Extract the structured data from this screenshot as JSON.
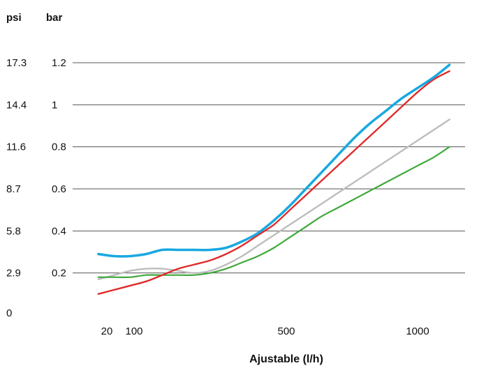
{
  "chart_data": {
    "type": "line",
    "title": "",
    "xlabel": "Ajustable (l/h)",
    "ylabel_left": "psi",
    "ylabel_right": "bar",
    "y_ticks_psi": [
      "17.3",
      "14.4",
      "11.6",
      "8.7",
      "5.8",
      "2.9",
      "0"
    ],
    "y_ticks_bar": [
      "1.2",
      "1",
      "0.8",
      "0.6",
      "0.4",
      "0.2",
      ""
    ],
    "x_ticks": [
      {
        "label": "20",
        "value": 20
      },
      {
        "label": "100",
        "value": 100
      },
      {
        "label": "500",
        "value": 500
      },
      {
        "label": "1000",
        "value": 1000
      }
    ],
    "xlim": [
      -30,
      1180
    ],
    "ylim": [
      0,
      1.2
    ],
    "grid": true,
    "series": [
      {
        "color": "#18a8e0",
        "x": [
          0,
          50,
          100,
          150,
          200,
          250,
          300,
          350,
          400,
          450,
          500,
          550,
          600,
          650,
          700,
          750,
          800,
          850,
          900,
          950,
          1000,
          1050,
          1100
        ],
        "y": [
          0.29,
          0.28,
          0.28,
          0.29,
          0.31,
          0.31,
          0.31,
          0.31,
          0.32,
          0.35,
          0.39,
          0.45,
          0.52,
          0.6,
          0.68,
          0.76,
          0.84,
          0.91,
          0.97,
          1.03,
          1.08,
          1.13,
          1.19
        ]
      },
      {
        "color": "#e02b2b",
        "x": [
          0,
          50,
          100,
          150,
          200,
          250,
          300,
          350,
          400,
          450,
          500,
          550,
          600,
          650,
          700,
          750,
          800,
          850,
          900,
          950,
          1000,
          1050,
          1100
        ],
        "y": [
          0.1,
          0.12,
          0.14,
          0.16,
          0.19,
          0.22,
          0.24,
          0.26,
          0.29,
          0.33,
          0.38,
          0.43,
          0.5,
          0.57,
          0.64,
          0.71,
          0.78,
          0.85,
          0.92,
          0.99,
          1.06,
          1.12,
          1.16
        ]
      },
      {
        "color": "#bdbdbd",
        "x": [
          0,
          50,
          100,
          150,
          200,
          250,
          300,
          350,
          400,
          450,
          500,
          550,
          600,
          650,
          700,
          750,
          800,
          850,
          900,
          950,
          1000,
          1050,
          1100
        ],
        "y": [
          0.17,
          0.19,
          0.21,
          0.22,
          0.22,
          0.21,
          0.2,
          0.21,
          0.24,
          0.28,
          0.33,
          0.38,
          0.43,
          0.48,
          0.53,
          0.58,
          0.63,
          0.68,
          0.73,
          0.78,
          0.83,
          0.88,
          0.93
        ]
      },
      {
        "color": "#3fa83a",
        "x": [
          0,
          50,
          100,
          150,
          200,
          250,
          300,
          350,
          400,
          450,
          500,
          550,
          600,
          650,
          700,
          750,
          800,
          850,
          900,
          950,
          1000,
          1050,
          1100
        ],
        "y": [
          0.18,
          0.18,
          0.18,
          0.19,
          0.19,
          0.19,
          0.19,
          0.2,
          0.22,
          0.25,
          0.28,
          0.32,
          0.37,
          0.42,
          0.47,
          0.51,
          0.55,
          0.59,
          0.63,
          0.67,
          0.71,
          0.75,
          0.8
        ]
      }
    ]
  }
}
